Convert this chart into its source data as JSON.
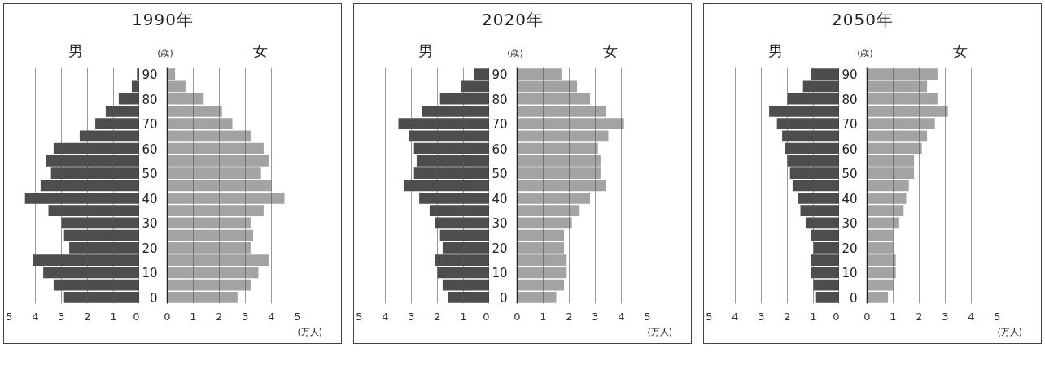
{
  "chart_data": [
    {
      "type": "bar",
      "orientation": "horizontal",
      "title": "1990年",
      "tick_labels": "x",
      "categories": [
        "90",
        null,
        "80",
        null,
        "70",
        null,
        "60",
        null,
        "50",
        null,
        "40",
        null,
        "30",
        null,
        "20",
        null,
        "10",
        null,
        "0"
      ],
      "series": [
        {
          "name": "男",
          "color": "#4d4d4d",
          "values": [
            0.1,
            0.3,
            0.8,
            1.3,
            1.7,
            2.3,
            3.3,
            3.6,
            3.4,
            3.8,
            4.4,
            3.5,
            3.0,
            2.9,
            2.7,
            4.1,
            3.7,
            3.3,
            2.9
          ]
        }
      ],
      "xlim": [
        5,
        0
      ],
      "xticks": [
        0,
        1,
        2,
        3,
        4,
        5
      ],
      "grid": "x"
    },
    {
      "type": "bar",
      "orientation": "horizontal",
      "ylabel": "(歳)",
      "xlabel": "(万人)",
      "categories": [
        "90",
        null,
        "80",
        null,
        "70",
        null,
        "60",
        null,
        "50",
        null,
        "40",
        null,
        "30",
        null,
        "20",
        null,
        "10",
        null,
        "0"
      ],
      "series": [
        {
          "name": "女",
          "color": "#a3a3a3",
          "values": [
            0.3,
            0.7,
            1.4,
            2.1,
            2.5,
            3.2,
            3.7,
            3.9,
            3.6,
            4.0,
            4.5,
            3.7,
            3.2,
            3.3,
            3.2,
            3.9,
            3.5,
            3.2,
            2.7
          ]
        }
      ],
      "xlim": [
        0,
        5
      ],
      "xticks": [
        0,
        1,
        2,
        3,
        4,
        5
      ],
      "grid": "x"
    },
    {
      "type": "bar",
      "orientation": "horizontal",
      "title": "2020年",
      "tick_labels": "x",
      "categories": [
        "90",
        null,
        "80",
        null,
        "70",
        null,
        "60",
        null,
        "50",
        null,
        "40",
        null,
        "30",
        null,
        "20",
        null,
        "10",
        null,
        "0"
      ],
      "series": [
        {
          "name": "男",
          "color": "#4d4d4d",
          "values": [
            0.6,
            1.1,
            1.9,
            2.6,
            3.5,
            3.1,
            2.9,
            2.8,
            2.9,
            3.3,
            2.7,
            2.3,
            2.1,
            1.9,
            1.8,
            2.1,
            2.0,
            1.8,
            1.6
          ]
        }
      ],
      "xlim": [
        5,
        0
      ],
      "xticks": [
        0,
        1,
        2,
        3,
        4,
        5
      ],
      "grid": "x"
    },
    {
      "type": "bar",
      "orientation": "horizontal",
      "ylabel": "(歳)",
      "xlabel": "(万人)",
      "categories": [
        "90",
        null,
        "80",
        null,
        "70",
        null,
        "60",
        null,
        "50",
        null,
        "40",
        null,
        "30",
        null,
        "20",
        null,
        "10",
        null,
        "0"
      ],
      "series": [
        {
          "name": "女",
          "color": "#a3a3a3",
          "values": [
            1.7,
            2.3,
            2.8,
            3.4,
            4.1,
            3.5,
            3.1,
            3.2,
            3.2,
            3.4,
            2.8,
            2.4,
            2.1,
            1.8,
            1.8,
            1.9,
            1.9,
            1.8,
            1.5
          ]
        }
      ],
      "xlim": [
        0,
        5
      ],
      "xticks": [
        0,
        1,
        2,
        3,
        4,
        5
      ],
      "grid": "x"
    },
    {
      "type": "bar",
      "orientation": "horizontal",
      "title": "2050年",
      "tick_labels": "x",
      "categories": [
        "90",
        null,
        "80",
        null,
        "70",
        null,
        "60",
        null,
        "50",
        null,
        "40",
        null,
        "30",
        null,
        "20",
        null,
        "10",
        null,
        "0"
      ],
      "series": [
        {
          "name": "男",
          "color": "#4d4d4d",
          "values": [
            1.1,
            1.4,
            2.0,
            2.7,
            2.4,
            2.2,
            2.1,
            2.0,
            1.9,
            1.8,
            1.6,
            1.5,
            1.3,
            1.1,
            1.0,
            1.1,
            1.1,
            1.0,
            0.9
          ]
        }
      ],
      "xlim": [
        5,
        0
      ],
      "xticks": [
        0,
        1,
        2,
        3,
        4,
        5
      ],
      "grid": "x"
    },
    {
      "type": "bar",
      "orientation": "horizontal",
      "ylabel": "(歳)",
      "xlabel": "(万人)",
      "categories": [
        "90",
        null,
        "80",
        null,
        "70",
        null,
        "60",
        null,
        "50",
        null,
        "40",
        null,
        "30",
        null,
        "20",
        null,
        "10",
        null,
        "0"
      ],
      "series": [
        {
          "name": "女",
          "color": "#a3a3a3",
          "values": [
            2.7,
            2.3,
            2.7,
            3.1,
            2.6,
            2.3,
            2.1,
            1.8,
            1.8,
            1.6,
            1.5,
            1.4,
            1.2,
            1.0,
            1.0,
            1.1,
            1.1,
            1.0,
            0.8
          ]
        }
      ],
      "xlim": [
        0,
        5
      ],
      "xticks": [
        0,
        1,
        2,
        3,
        4,
        5
      ],
      "grid": "x"
    }
  ]
}
